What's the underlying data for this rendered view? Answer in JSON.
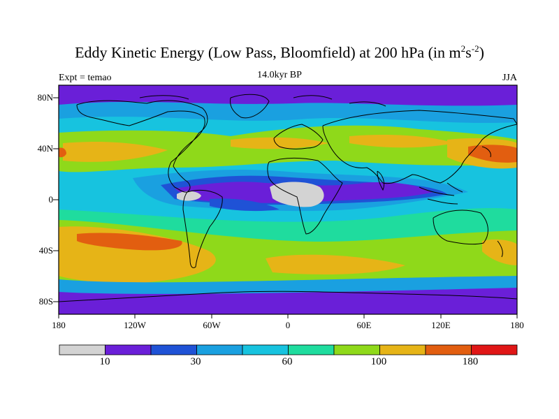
{
  "map": {
    "title_main": "Eddy Kinetic Energy (Low Pass, Bloomfield) at 200 hPa (in m",
    "title_sup1": "2",
    "title_mid": "s",
    "title_sup2": "-2",
    "title_end": ")",
    "subtitle": "14.0kyr BP",
    "experiment": "Expt = temao",
    "season": "JJA",
    "lat_labels": [
      "80N",
      "40N",
      "0",
      "40S",
      "80S"
    ],
    "lon_labels": [
      "180",
      "120W",
      "60W",
      "0",
      "60E",
      "120E",
      "180"
    ],
    "colorbar": {
      "colors": [
        "#d3d3d3",
        "#6a1fd8",
        "#1f52d6",
        "#1aa0e0",
        "#17c3df",
        "#1fdc9e",
        "#8fd91a",
        "#e6b417",
        "#e25e10",
        "#e01616"
      ],
      "labels": [
        "10",
        "30",
        "60",
        "100",
        "180"
      ]
    },
    "ocean_color": "#17c3df"
  }
}
